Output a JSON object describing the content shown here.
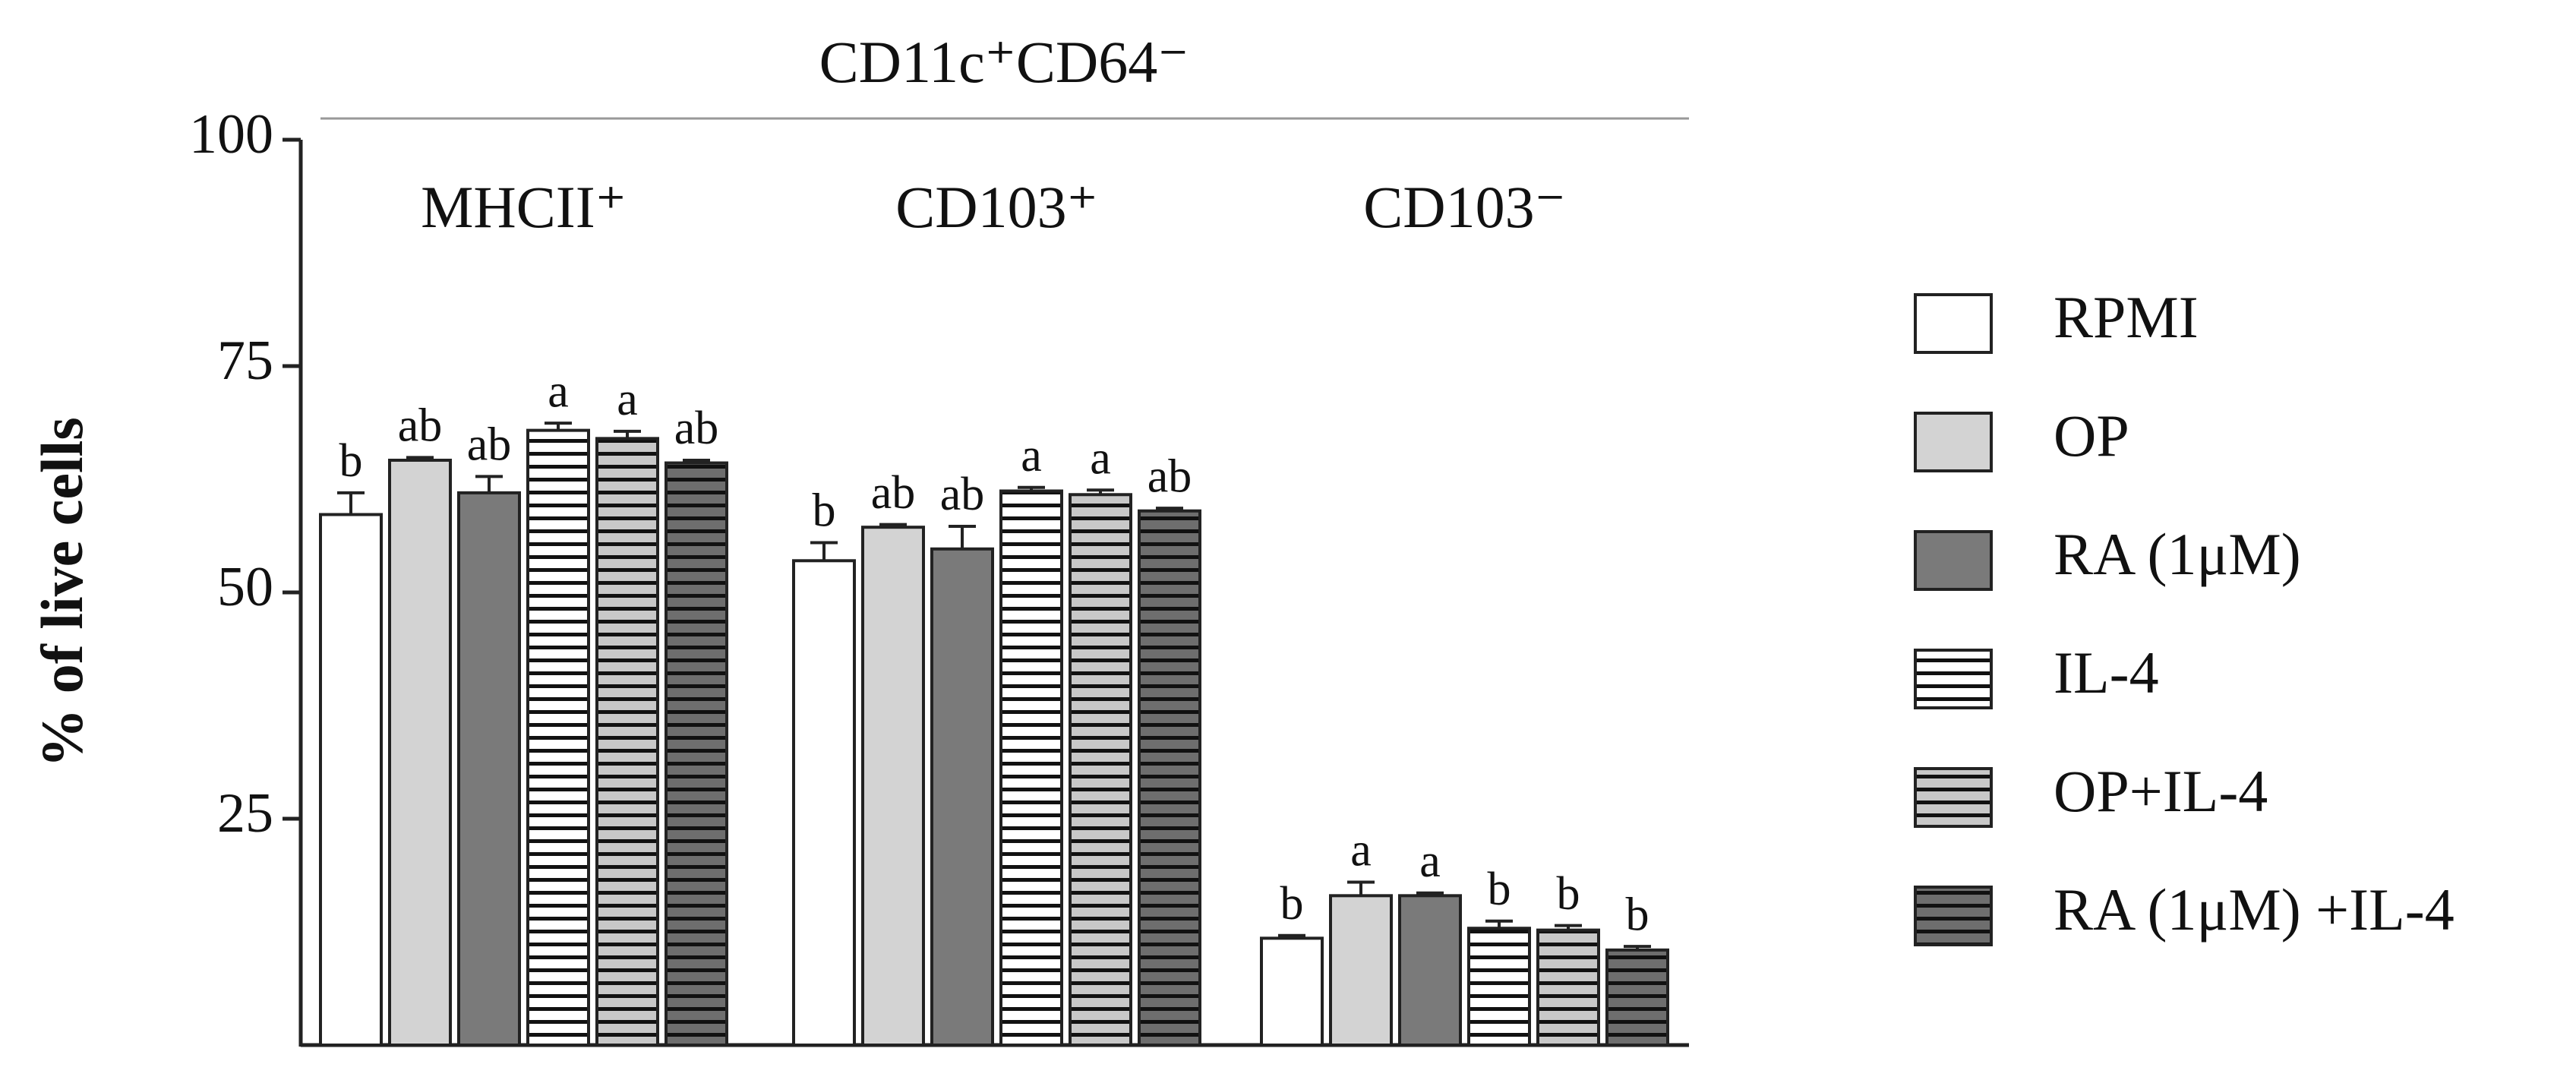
{
  "chart_data": {
    "type": "bar",
    "header": "CD11c⁺CD64⁻",
    "y_label": "% of live cells",
    "categories": [
      "MHCII⁺",
      "CD103⁺",
      "CD103⁻"
    ],
    "ylim": [
      0,
      100
    ],
    "yticks": [
      25,
      50,
      75,
      100
    ],
    "series": [
      {
        "name": "RPMI",
        "color": "#ffffff",
        "hatch": false,
        "values": [
          58.6,
          53.5,
          11.8
        ],
        "errors": [
          2.4,
          2.0,
          0.3
        ],
        "letters": [
          "b",
          "b",
          "b"
        ]
      },
      {
        "name": "OP",
        "color": "#d3d3d3",
        "hatch": false,
        "values": [
          64.6,
          57.2,
          16.5
        ],
        "errors": [
          0.3,
          0.3,
          1.5
        ],
        "letters": [
          "ab",
          "ab",
          "a"
        ]
      },
      {
        "name": "RA (1μM)",
        "color": "#7a7a7a",
        "hatch": false,
        "values": [
          61.0,
          54.8,
          16.5
        ],
        "errors": [
          1.8,
          2.5,
          0.3
        ],
        "letters": [
          "ab",
          "ab",
          "a"
        ]
      },
      {
        "name": "IL-4",
        "color": "#ffffff",
        "hatch": true,
        "values": [
          67.9,
          61.2,
          12.9
        ],
        "errors": [
          0.8,
          0.4,
          0.8
        ],
        "letters": [
          "a",
          "a",
          "b"
        ]
      },
      {
        "name": "OP+IL-4",
        "color": "#c8c8c8",
        "hatch": true,
        "values": [
          67.0,
          60.8,
          12.7
        ],
        "errors": [
          0.8,
          0.5,
          0.5
        ],
        "letters": [
          "a",
          "a",
          "b"
        ]
      },
      {
        "name": "RA (1μM) +IL-4",
        "color": "#6e6e6e",
        "hatch": true,
        "values": [
          64.3,
          59.0,
          10.5
        ],
        "errors": [
          0.3,
          0.3,
          0.4
        ],
        "letters": [
          "ab",
          "ab",
          "b"
        ]
      }
    ]
  }
}
